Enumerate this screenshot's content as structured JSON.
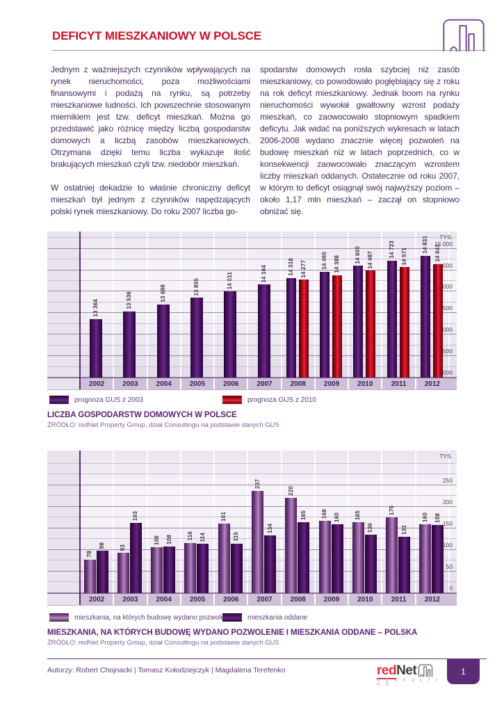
{
  "header": {
    "title": "DEFICYT MIESZKANIOWY W POLSCE",
    "icon": "buildings-outline-icon"
  },
  "body": {
    "col1_p1": "Jednym z ważniejszych czynników wpływających na rynek nieruchomości, poza możliwościami finansowymi i podażą na rynku, są potrzeby mieszkaniowe ludności. Ich powszechnie stosowanym miernikiem jest tzw. deficyt mieszkań. Można go przedstawić jako różnicę między liczbą gospodarstw domowych a liczbą zasobów mieszkaniowych. Otrzymana dzięki temu liczba wykazuje ilość brakujących mieszkań czyli tzw. niedobór mieszkań.",
    "col1_p2": "W ostatniej dekadzie to właśnie chroniczny deficyt mieszkań był jednym z czynników napędzających polski rynek mieszkaniowy. Do roku 2007 liczba go-",
    "col2_p1": "spodarstw domowych rosła szybciej niż zasób mieszkaniowy, co powodowało pogłębiający się z roku na rok deficyt mieszkaniowy. Jednak boom na rynku nieruchomości wywołał gwałtowny wzrost podaży mieszkań, co zaowocowało stopniowym spadkiem deficytu. Jak widać na poniższych wykresach w latach 2006-2008 wydano znacznie więcej pozwoleń na budowę mieszkań niż w latach poprzednich, co w konsekwencji zaowocowało znaczącym wzrostem liczby mieszkań oddanych. Ostatecznie od roku 2007, w którym to deficyt osiągnął swój najwyższy poziom – około 1,17 mln mieszkań – zaczął on stopniowo obniżać się."
  },
  "chart_data": [
    {
      "type": "bar",
      "title": "LICZBA GOSPODARSTW DOMOWYCH W POLSCE",
      "source": "ŹRÓDŁO: redNet Property Group, dział Consultingu na podstawie danych GUS",
      "unit_label": "TYS.",
      "categories": [
        "2002",
        "2003",
        "2004",
        "2005",
        "2006",
        "2007",
        "2008",
        "2009",
        "2010",
        "2011",
        "2012"
      ],
      "series": [
        {
          "name": "prognoza GUS z 2003",
          "color": "#4a1464",
          "values": [
            13364,
            13536,
            13698,
            13855,
            14011,
            14164,
            14318,
            14465,
            14600,
            14723,
            14831
          ]
        },
        {
          "name": "prognoza GUS z 2010",
          "color": "#c8102e",
          "values": [
            null,
            null,
            null,
            null,
            null,
            null,
            14277,
            14388,
            14487,
            14571,
            14641
          ]
        }
      ],
      "ylim": [
        12000,
        15400
      ],
      "yticks": [
        12000,
        12500,
        13000,
        13500,
        14000,
        14500,
        15000
      ],
      "minor_step": 250,
      "grid": true,
      "legend_position": "below",
      "value_labels": "rotated",
      "group_thousands": true
    },
    {
      "type": "bar",
      "title": "MIESZKANIA, NA KTÓRYCH BUDOWĘ WYDANO POZWOLENIE I MIESZKANIA ODDANE – POLSKA",
      "source": "ŹRÓDŁO: redNet Property Group, dział Consultingu na podstawie danych GUS",
      "unit_label": "TYS.",
      "categories": [
        "2002",
        "2003",
        "2004",
        "2005",
        "2006",
        "2007",
        "2008",
        "2009",
        "2010",
        "2011",
        "2012"
      ],
      "series": [
        {
          "name": "mieszkania, na których budowę wydano pozwolenie",
          "color": "#8a4f99",
          "values": [
            78,
            93,
            106,
            116,
            161,
            237,
            220,
            168,
            165,
            175,
            160
          ]
        },
        {
          "name": "mieszkania oddane",
          "color": "#4a1464",
          "values": [
            98,
            163,
            108,
            114,
            115,
            134,
            165,
            160,
            136,
            131,
            158
          ]
        }
      ],
      "ylim": [
        0,
        330
      ],
      "yticks": [
        0,
        50,
        100,
        150,
        200,
        250
      ],
      "minor_step": 25,
      "grid": true,
      "legend_position": "below",
      "value_labels": "rotated",
      "group_thousands": false
    }
  ],
  "footer": {
    "authors": "Autorzy: Robert Chojnacki  |  Tomasz Kołodziejczyk  |  Magdalena Terefenko",
    "logo_red": "red",
    "logo_net": "Net",
    "logo_sub": "C O N S U L T I N G",
    "logo_icon": "buildings-icon",
    "page_number": "1"
  }
}
